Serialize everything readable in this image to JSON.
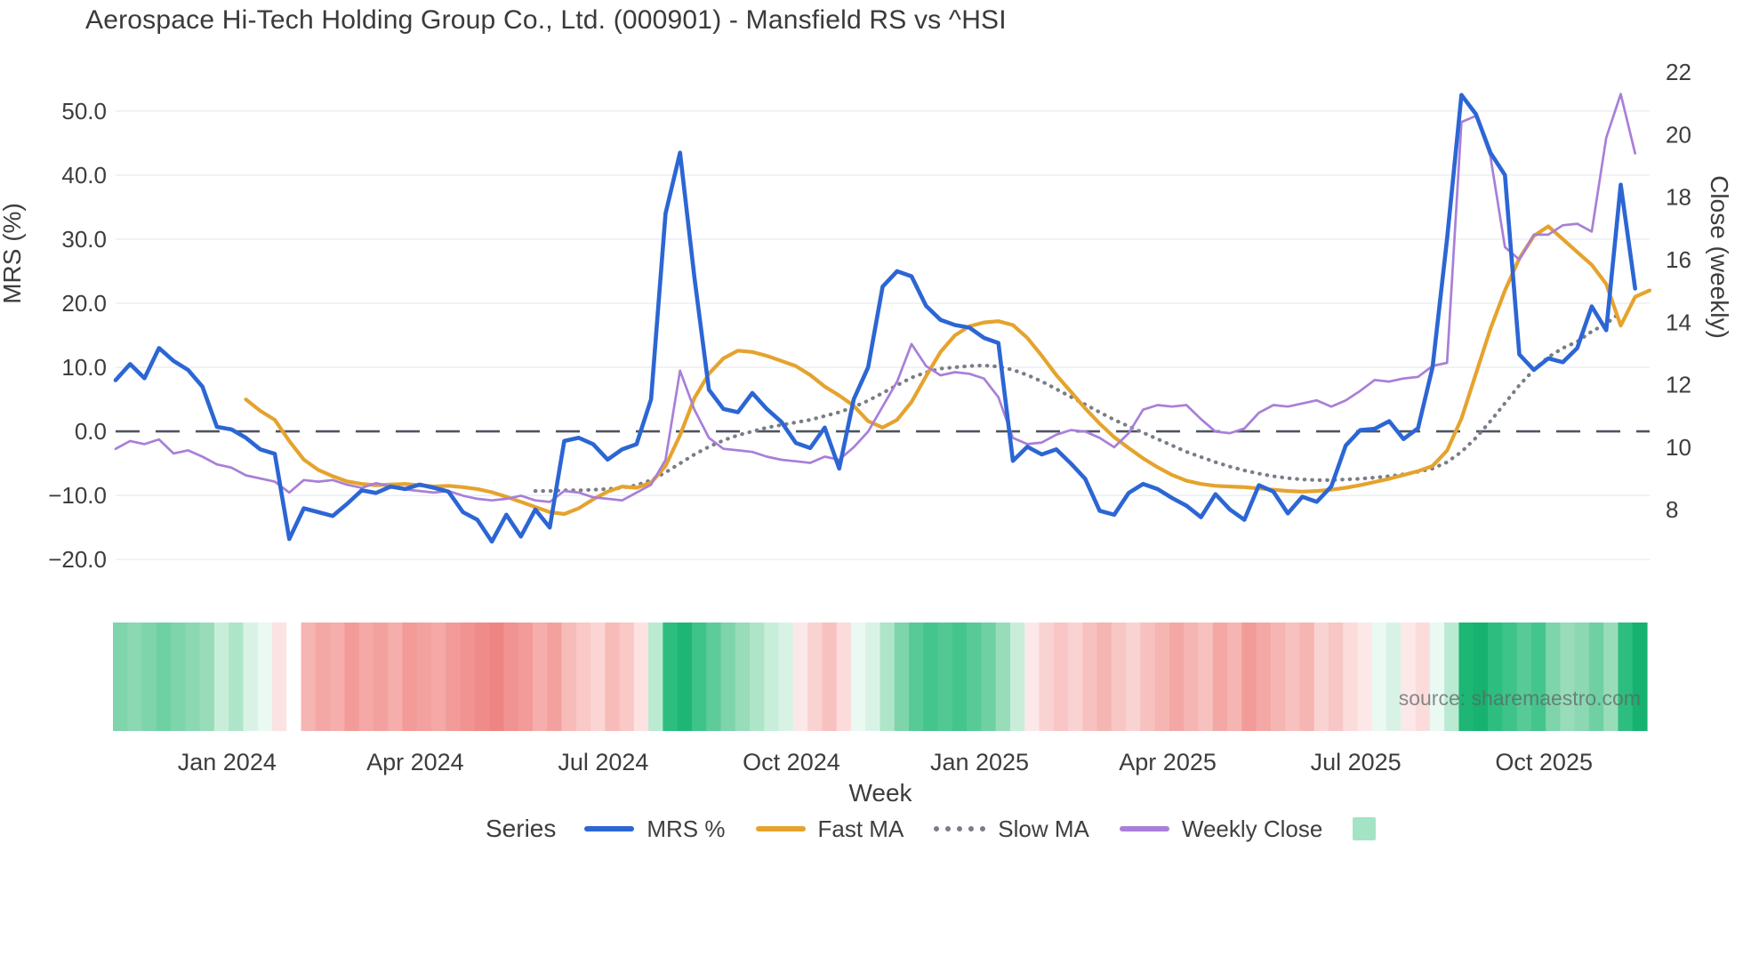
{
  "title": "Aerospace Hi-Tech Holding Group Co., Ltd. (000901) - Mansfield RS vs ^HSI",
  "source": "source: sharemaestro.com",
  "chart_data": {
    "type": "line",
    "title": "Aerospace Hi-Tech Holding Group Co., Ltd. (000901) - Mansfield RS vs ^HSI",
    "x_axis": {
      "title": "Week",
      "unit": "week",
      "tick_labels": [
        "Jan 2024",
        "Apr 2024",
        "Jul 2024",
        "Oct 2024",
        "Jan 2025",
        "Apr 2025",
        "Jul 2025",
        "Oct 2025"
      ],
      "tick_weeks": [
        7.7,
        20.7,
        33.7,
        46.7,
        59.7,
        72.7,
        85.7,
        98.7
      ]
    },
    "left_axis": {
      "title": "MRS (%)",
      "tick_labels": [
        "50.0",
        "40.0",
        "30.0",
        "20.0",
        "10.0",
        "0.0",
        "−10.0",
        "−20.0"
      ],
      "tick_values": [
        50,
        40,
        30,
        20,
        10,
        0,
        -10,
        -20
      ],
      "range": [
        -21.5,
        59.0
      ],
      "grid": true
    },
    "right_axis": {
      "title": "Close (weekly)",
      "tick_labels": [
        "22",
        "20",
        "18",
        "16",
        "14",
        "12",
        "10",
        "8"
      ],
      "tick_values": [
        22,
        20,
        18,
        16,
        14,
        12,
        10,
        8
      ],
      "range": [
        6.1,
        22.6
      ],
      "grid": false
    },
    "zero_line": {
      "axis": "left",
      "value": 0,
      "color": "#4e5560"
    },
    "grid_color": "#edeff4",
    "series": [
      {
        "name": "MRS %",
        "axis": "left",
        "color": "#2c66d4",
        "style": "solid",
        "start_week": 0,
        "values": [
          8.0,
          10.5,
          8.3,
          13.0,
          11.0,
          9.6,
          7.0,
          0.7,
          0.3,
          -1.0,
          -2.8,
          -3.5,
          -16.8,
          -12.0,
          -12.6,
          -13.2,
          -11.3,
          -9.2,
          -9.6,
          -8.6,
          -9.0,
          -8.3,
          -8.8,
          -9.4,
          -12.6,
          -13.8,
          -17.2,
          -13.0,
          -16.4,
          -12.2,
          -15.0,
          -1.5,
          -1.0,
          -2.0,
          -4.4,
          -2.8,
          -2.0,
          5.0,
          34.0,
          43.5,
          24.0,
          6.5,
          3.5,
          3.0,
          6.0,
          3.5,
          1.5,
          -1.8,
          -2.6,
          0.6,
          -5.8,
          5.0,
          10.0,
          22.6,
          25.0,
          24.2,
          19.6,
          17.4,
          16.6,
          16.2,
          14.6,
          13.8,
          -4.6,
          -2.4,
          -3.6,
          -2.8,
          -5.0,
          -7.4,
          -12.4,
          -13.0,
          -9.6,
          -8.2,
          -9.0,
          -10.4,
          -11.6,
          -13.4,
          -9.8,
          -12.2,
          -13.8,
          -8.4,
          -9.4,
          -12.8,
          -10.2,
          -11.0,
          -8.6,
          -2.2,
          0.2,
          0.4,
          1.6,
          -1.2,
          0.5,
          10.0,
          30.0,
          52.5,
          49.5,
          43.5,
          40.0,
          12.0,
          9.6,
          11.4,
          10.8,
          13.0,
          19.5,
          15.8,
          38.5,
          22.3
        ]
      },
      {
        "name": "Fast MA",
        "axis": "left",
        "color": "#e5a32e",
        "style": "solid",
        "start_week": 9,
        "values": [
          5.0,
          3.2,
          1.8,
          -1.5,
          -4.4,
          -6.0,
          -7.0,
          -7.8,
          -8.2,
          -8.4,
          -8.3,
          -8.2,
          -8.4,
          -8.6,
          -8.5,
          -8.7,
          -9.0,
          -9.5,
          -10.2,
          -11.0,
          -11.8,
          -12.6,
          -12.9,
          -12.0,
          -10.6,
          -9.4,
          -8.6,
          -8.8,
          -8.0,
          -5.4,
          -0.6,
          5.2,
          9.0,
          11.4,
          12.6,
          12.4,
          11.8,
          11.0,
          10.2,
          8.8,
          7.0,
          5.6,
          4.0,
          1.6,
          0.6,
          1.8,
          4.6,
          8.6,
          12.4,
          15.0,
          16.4,
          17.0,
          17.2,
          16.6,
          14.6,
          11.8,
          8.8,
          6.2,
          3.6,
          1.2,
          -0.9,
          -2.6,
          -4.2,
          -5.6,
          -6.8,
          -7.7,
          -8.2,
          -8.5,
          -8.6,
          -8.7,
          -8.9,
          -9.1,
          -9.3,
          -9.4,
          -9.3,
          -9.1,
          -8.8,
          -8.4,
          -7.9,
          -7.4,
          -6.8,
          -6.2,
          -5.4,
          -3.0,
          2.0,
          9.0,
          16.0,
          22.0,
          27.0,
          30.5,
          32.0,
          30.0,
          28.0,
          26.0,
          23.0,
          16.5,
          21.0,
          22.0
        ]
      },
      {
        "name": "Slow MA",
        "axis": "left",
        "color": "#787d87",
        "style": "dotted",
        "start_week": 29,
        "values": [
          -9.3,
          -9.3,
          -9.2,
          -9.2,
          -9.1,
          -9.0,
          -8.8,
          -8.4,
          -7.6,
          -6.4,
          -5.0,
          -3.6,
          -2.4,
          -1.4,
          -0.6,
          0.0,
          0.6,
          1.0,
          1.4,
          1.8,
          2.4,
          3.0,
          3.8,
          4.8,
          6.0,
          7.2,
          8.4,
          9.2,
          9.8,
          10.0,
          10.2,
          10.3,
          10.1,
          9.6,
          8.8,
          7.8,
          6.6,
          5.4,
          4.2,
          3.0,
          1.8,
          0.8,
          -0.2,
          -1.2,
          -2.2,
          -3.2,
          -4.0,
          -4.8,
          -5.5,
          -6.1,
          -6.6,
          -7.0,
          -7.3,
          -7.5,
          -7.6,
          -7.6,
          -7.5,
          -7.4,
          -7.2,
          -7.0,
          -6.7,
          -6.3,
          -5.8,
          -4.8,
          -3.2,
          -1.0,
          1.6,
          4.4,
          7.2,
          9.6,
          11.6,
          13.0,
          14.0,
          15.6,
          16.8,
          18.6
        ]
      },
      {
        "name": "Weekly Close",
        "axis": "right",
        "color": "#a87fd8",
        "style": "solid",
        "start_week": 0,
        "values": [
          9.95,
          10.2,
          10.1,
          10.25,
          9.8,
          9.9,
          9.7,
          9.45,
          9.35,
          9.1,
          9.0,
          8.9,
          8.55,
          8.95,
          8.9,
          8.95,
          8.8,
          8.7,
          8.85,
          8.75,
          8.65,
          8.6,
          8.55,
          8.6,
          8.45,
          8.35,
          8.3,
          8.35,
          8.45,
          8.3,
          8.25,
          8.6,
          8.55,
          8.4,
          8.35,
          8.3,
          8.55,
          8.8,
          9.6,
          12.45,
          11.2,
          10.3,
          9.95,
          9.9,
          9.85,
          9.7,
          9.6,
          9.55,
          9.5,
          9.7,
          9.6,
          10.0,
          10.5,
          11.3,
          12.1,
          13.3,
          12.6,
          12.3,
          12.4,
          12.35,
          12.2,
          11.6,
          10.3,
          10.1,
          10.15,
          10.4,
          10.55,
          10.5,
          10.3,
          10.0,
          10.45,
          11.2,
          11.35,
          11.3,
          11.35,
          10.9,
          10.5,
          10.45,
          10.6,
          11.1,
          11.35,
          11.3,
          11.4,
          11.5,
          11.3,
          11.5,
          11.8,
          12.15,
          12.1,
          12.2,
          12.25,
          12.6,
          12.7,
          20.4,
          20.6,
          19.3,
          16.4,
          16.0,
          16.8,
          16.8,
          17.1,
          17.15,
          16.9,
          19.9,
          21.3,
          19.4
        ]
      }
    ],
    "heatmap_strip": {
      "description": "weekly relative-strength color strip (green = outperforming, red = underperforming)",
      "colors": [
        "#7ed4ab",
        "#8bd8b3",
        "#7ed4ab",
        "#6fd0a3",
        "#7ed4ab",
        "#8bd8b3",
        "#98dcba",
        "#c8eeda",
        "#aee5c9",
        "#d8f3e6",
        "#eaf9f2",
        "#fbe3e3",
        "#ffffff",
        "#f5b5b3",
        "#f3a8a6",
        "#f5aeac",
        "#f29b98",
        "#f5a8a6",
        "#f3a19f",
        "#f5aeac",
        "#f29b98",
        "#f3a19f",
        "#f5a8a6",
        "#f29b98",
        "#f09391",
        "#ef8c8a",
        "#ee8583",
        "#f09391",
        "#f29b98",
        "#f5aeac",
        "#f3a19f",
        "#f7bbb9",
        "#f9c8c7",
        "#fbd5d4",
        "#f7bbb9",
        "#f9c8c7",
        "#fce2e1",
        "#baead1",
        "#2dbe7f",
        "#1eb674",
        "#3ec389",
        "#5ecb9b",
        "#7ed4ab",
        "#98dcba",
        "#aee5c9",
        "#c8eeda",
        "#d8f3e6",
        "#fce8e8",
        "#f9d3d2",
        "#f7c1c0",
        "#fbdcdb",
        "#eaf9f2",
        "#d8f3e6",
        "#aee5c9",
        "#7ed4ab",
        "#58ca97",
        "#45c58e",
        "#52c893",
        "#45c58e",
        "#58ca97",
        "#6fd0a3",
        "#98dcba",
        "#c8eeda",
        "#fce8e8",
        "#f9d3d2",
        "#f7c6c5",
        "#f9d3d2",
        "#f7c1c0",
        "#f5b5b3",
        "#f7c6c5",
        "#f9d3d2",
        "#f7c1c0",
        "#f5b5b3",
        "#f3a8a6",
        "#f5b5b3",
        "#f7c1c0",
        "#f3a8a6",
        "#f5b5b3",
        "#f29b98",
        "#f3a8a6",
        "#f5b5b3",
        "#f7c1c0",
        "#f5b5b3",
        "#f9d3d2",
        "#f7c6c5",
        "#fbdcdb",
        "#fce8e8",
        "#eaf9f2",
        "#d8f3e6",
        "#fce8e8",
        "#fbdcdb",
        "#eaf9f2",
        "#baead1",
        "#1eb674",
        "#17b26f",
        "#2dbe7f",
        "#3ec389",
        "#58ca97",
        "#45c58e",
        "#7ed4ab",
        "#98dcba",
        "#8bd8b3",
        "#6fd0a3",
        "#98dcba",
        "#2dbe7f",
        "#17b26f"
      ]
    },
    "legend": {
      "title": "Series",
      "items": [
        {
          "label": "MRS %",
          "color": "#2c66d4",
          "style": "line"
        },
        {
          "label": "Fast MA",
          "color": "#e5a32e",
          "style": "line"
        },
        {
          "label": "Slow MA",
          "color": "#787d87",
          "style": "dotted"
        },
        {
          "label": "Weekly Close",
          "color": "#a87fd8",
          "style": "line"
        },
        {
          "label": "",
          "color": "#a5e3c6",
          "style": "square"
        }
      ]
    }
  }
}
